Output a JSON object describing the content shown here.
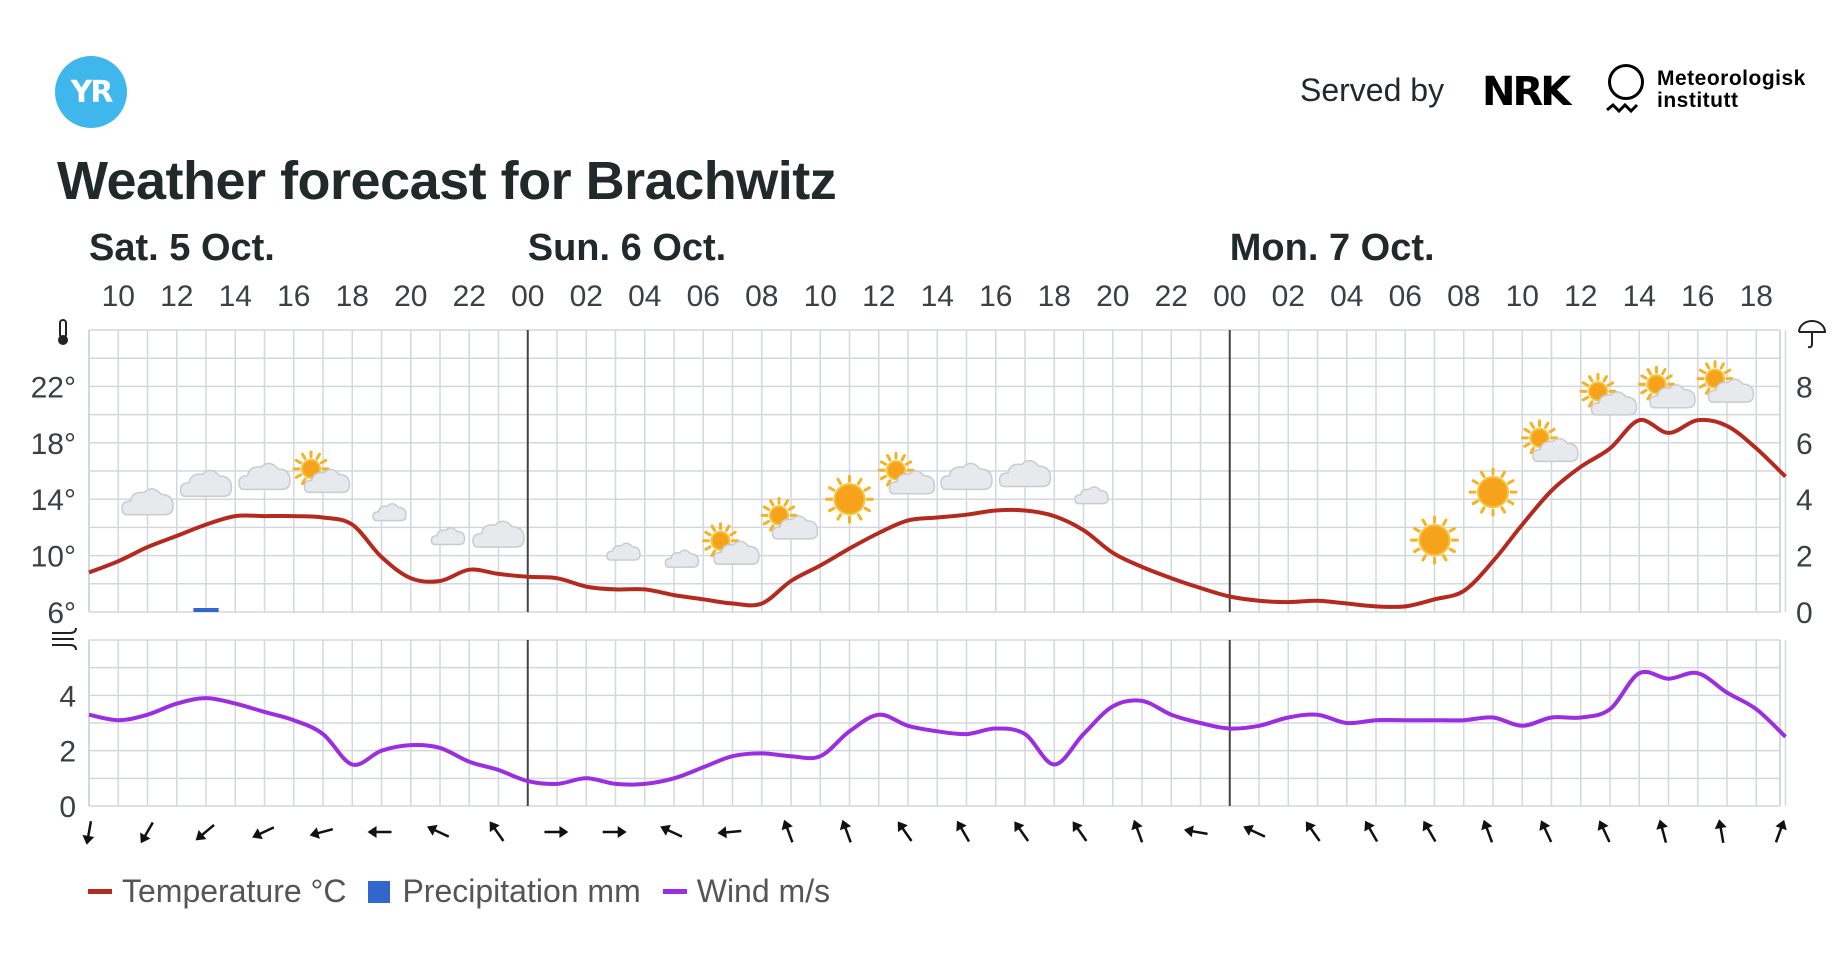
{
  "brand": {
    "logo_text": "YR",
    "served_by": "Served by",
    "nrk_text": "NRK",
    "met_line1": "Meteorologisk",
    "met_line2": "institutt"
  },
  "title": "Weather forecast for Brachwitz",
  "day_labels": [
    {
      "text": "Sat. 5 Oct.",
      "hour_index": 0
    },
    {
      "text": "Sun. 6 Oct.",
      "hour_index": 14
    },
    {
      "text": "Mon. 7 Oct.",
      "hour_index": 38
    }
  ],
  "hour_labels": [
    "10",
    "12",
    "14",
    "16",
    "18",
    "20",
    "22",
    "00",
    "02",
    "04",
    "06",
    "08",
    "10",
    "12",
    "14",
    "16",
    "18",
    "20",
    "22",
    "00",
    "02",
    "04",
    "06",
    "08",
    "10",
    "12",
    "14",
    "16",
    "18"
  ],
  "colors": {
    "temperature": "#b52a1f",
    "precipitation": "#3366cc",
    "wind": "#9b2ee0",
    "grid": "#d3d8de",
    "axis_text": "#3b4044",
    "day_divider": "#444444"
  },
  "chart_data": [
    {
      "type": "line",
      "series": [
        {
          "name": "Temperature °C",
          "unit": "°C",
          "values": [
            8.8,
            9.6,
            10.6,
            11.4,
            12.2,
            12.8,
            12.8,
            12.8,
            12.7,
            12.2,
            9.9,
            8.4,
            8.2,
            9.0,
            8.7,
            8.5,
            8.4,
            7.8,
            7.6,
            7.6,
            7.2,
            6.9,
            6.6,
            6.6,
            8.2,
            9.3,
            10.5,
            11.6,
            12.5,
            12.7,
            12.9,
            13.2,
            13.2,
            12.8,
            11.8,
            10.2,
            9.2,
            8.4,
            7.7,
            7.1,
            6.8,
            6.7,
            6.8,
            6.6,
            6.4,
            6.4,
            6.9,
            7.5,
            9.6,
            12.2,
            14.6,
            16.3,
            17.6,
            19.6,
            18.7,
            19.6,
            19.2,
            17.6,
            15.6
          ]
        },
        {
          "name": "Precipitation mm",
          "unit": "mm",
          "type": "bar",
          "bars": [
            {
              "x_index": 4,
              "value": 0.1
            }
          ]
        }
      ],
      "x_start": "Sat. 5 Oct. 09:00",
      "x_step_hours": 1,
      "temperature_ylim": [
        6,
        26
      ],
      "temperature_ticks": [
        "6°",
        "10°",
        "14°",
        "18°",
        "22°"
      ],
      "temperature_tick_values": [
        6,
        10,
        14,
        18,
        22
      ],
      "precip_ylim": [
        0,
        10
      ],
      "precip_ticks": [
        "0",
        "2",
        "4",
        "6",
        "8"
      ],
      "precip_tick_values": [
        0,
        2,
        4,
        6,
        8
      ],
      "grid": true
    },
    {
      "type": "line",
      "series": [
        {
          "name": "Wind m/s",
          "unit": "m/s",
          "values": [
            3.3,
            3.1,
            3.3,
            3.7,
            3.9,
            3.7,
            3.4,
            3.1,
            2.6,
            1.5,
            2.0,
            2.2,
            2.1,
            1.6,
            1.3,
            0.9,
            0.8,
            1.0,
            0.8,
            0.8,
            1.0,
            1.4,
            1.8,
            1.9,
            1.8,
            1.8,
            2.7,
            3.3,
            2.9,
            2.7,
            2.6,
            2.8,
            2.6,
            1.5,
            2.6,
            3.6,
            3.8,
            3.3,
            3.0,
            2.8,
            2.9,
            3.2,
            3.3,
            3.0,
            3.1,
            3.1,
            3.1,
            3.1,
            3.2,
            2.9,
            3.2,
            3.2,
            3.5,
            4.8,
            4.6,
            4.8,
            4.1,
            3.5,
            2.5
          ]
        }
      ],
      "x_start": "Sat. 5 Oct. 09:00",
      "x_step_hours": 1,
      "ylim": [
        0,
        6
      ],
      "ticks": [
        "0",
        "2",
        "4"
      ],
      "tick_values": [
        0,
        2,
        4
      ],
      "grid": true,
      "wind_directions_from_deg": [
        10,
        30,
        50,
        65,
        75,
        90,
        115,
        145,
        270,
        270,
        115,
        85,
        160,
        160,
        145,
        150,
        145,
        145,
        160,
        100,
        115,
        145,
        150,
        150,
        160,
        155,
        155,
        165,
        170,
        200
      ]
    }
  ],
  "weather_symbols": [
    {
      "hour_index": 2,
      "symbol": "cloudy",
      "temp": 13.5
    },
    {
      "hour_index": 4,
      "symbol": "cloudy",
      "temp": 14.8
    },
    {
      "hour_index": 6,
      "symbol": "cloudy",
      "temp": 15.3
    },
    {
      "hour_index": 8,
      "symbol": "partly-cloudy-day",
      "temp": 15.3
    },
    {
      "hour_index": 10,
      "symbol": "partly-cloudy-night",
      "temp": 13.3
    },
    {
      "hour_index": 12,
      "symbol": "partly-cloudy-night",
      "temp": 11.6
    },
    {
      "hour_index": 14,
      "symbol": "cloudy",
      "temp": 11.2
    },
    {
      "hour_index": 16,
      "symbol": "clear-night",
      "temp": 11.3
    },
    {
      "hour_index": 18,
      "symbol": "partly-cloudy-night",
      "temp": 10.5
    },
    {
      "hour_index": 20,
      "symbol": "partly-cloudy-night",
      "temp": 10.0
    },
    {
      "hour_index": 22,
      "symbol": "partly-cloudy-day",
      "temp": 10.2
    },
    {
      "hour_index": 24,
      "symbol": "partly-cloudy-day",
      "temp": 12.0
    },
    {
      "hour_index": 26,
      "symbol": "clear-day",
      "temp": 14.0
    },
    {
      "hour_index": 28,
      "symbol": "partly-cloudy-day",
      "temp": 15.2
    },
    {
      "hour_index": 30,
      "symbol": "cloudy",
      "temp": 15.3
    },
    {
      "hour_index": 32,
      "symbol": "cloudy",
      "temp": 15.5
    },
    {
      "hour_index": 34,
      "symbol": "partly-cloudy-night",
      "temp": 14.5
    },
    {
      "hour_index": 36,
      "symbol": "clear-night",
      "temp": 13.0
    },
    {
      "hour_index": 38,
      "symbol": "clear-night",
      "temp": 11.5
    },
    {
      "hour_index": 40,
      "symbol": "clear-night",
      "temp": 10.5
    },
    {
      "hour_index": 42,
      "symbol": "clear-night",
      "temp": 10.2
    },
    {
      "hour_index": 44,
      "symbol": "clear-night",
      "temp": 10.1
    },
    {
      "hour_index": 46,
      "symbol": "clear-day",
      "temp": 11.1
    },
    {
      "hour_index": 48,
      "symbol": "clear-day",
      "temp": 14.5
    },
    {
      "hour_index": 50,
      "symbol": "partly-cloudy-day",
      "temp": 17.5
    },
    {
      "hour_index": 52,
      "symbol": "partly-cloudy-day",
      "temp": 20.8
    },
    {
      "hour_index": 54,
      "symbol": "partly-cloudy-day",
      "temp": 21.3
    },
    {
      "hour_index": 56,
      "symbol": "partly-cloudy-day",
      "temp": 21.7
    }
  ],
  "legend": [
    {
      "label": "Temperature °C",
      "kind": "line",
      "color": "#b52a1f"
    },
    {
      "label": "Precipitation mm",
      "kind": "box",
      "color": "#3366cc"
    },
    {
      "label": "Wind m/s",
      "kind": "line",
      "color": "#9b2ee0"
    }
  ]
}
